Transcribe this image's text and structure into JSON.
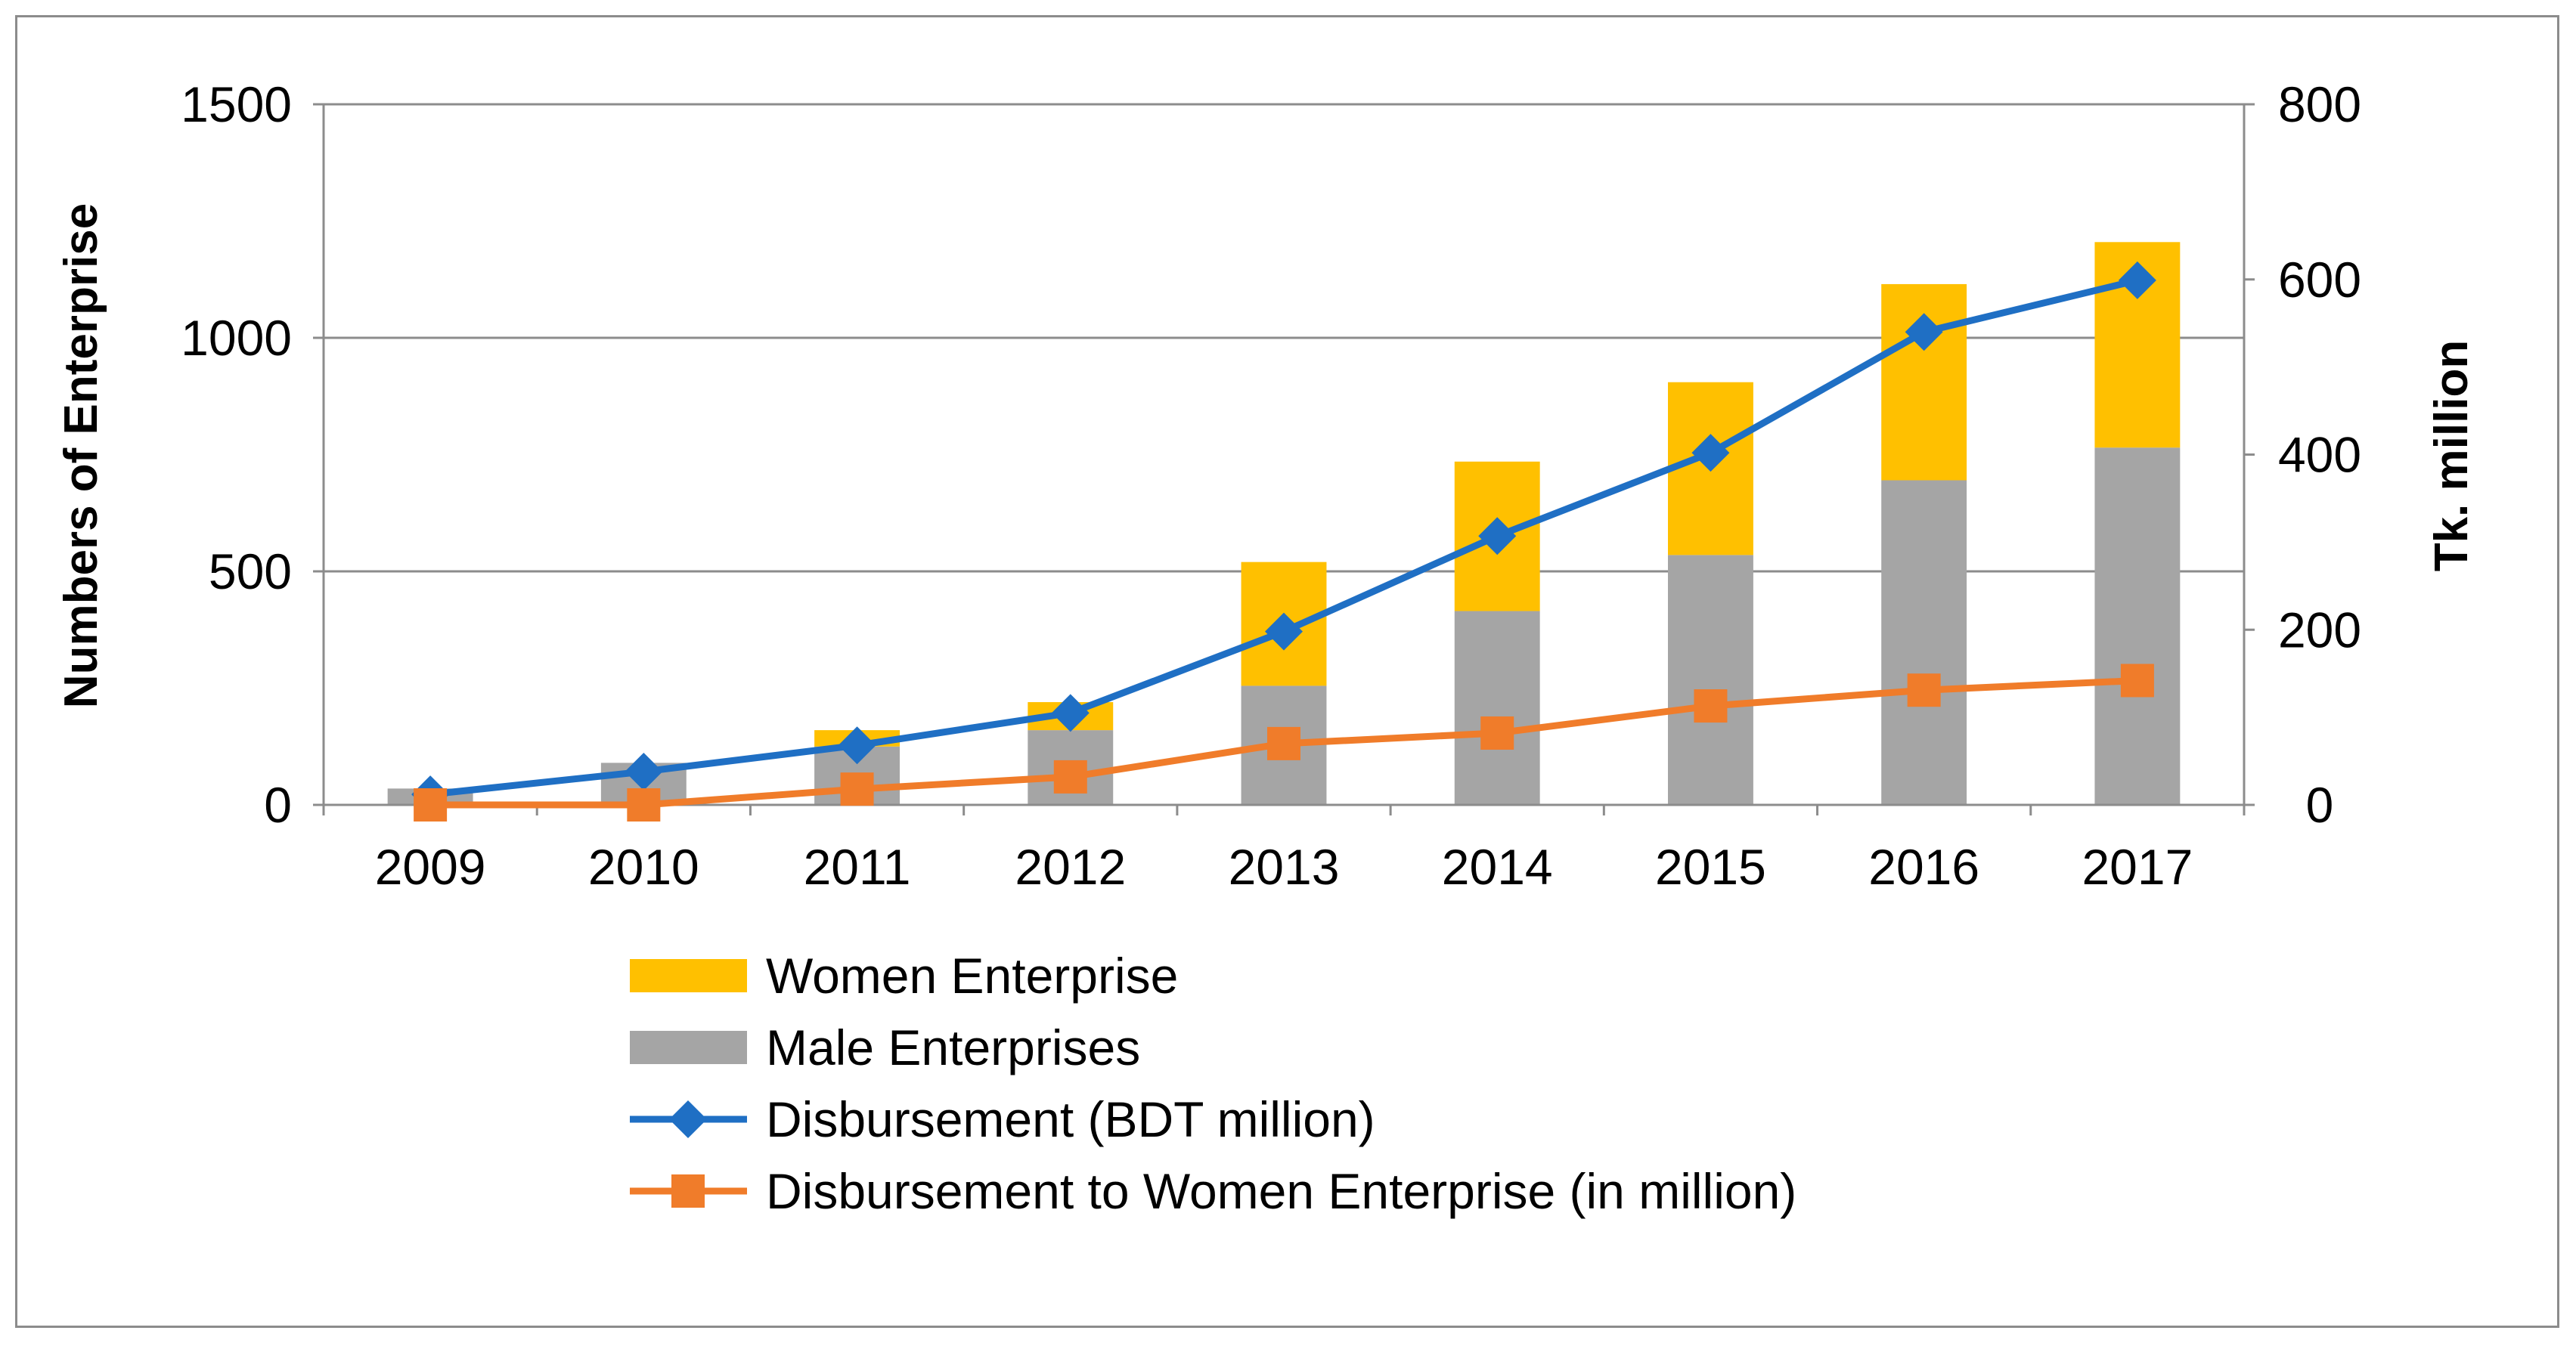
{
  "chart_data": {
    "type": "bar",
    "stacked": true,
    "categories": [
      "2009",
      "2010",
      "2011",
      "2012",
      "2013",
      "2014",
      "2015",
      "2016",
      "2017"
    ],
    "series": [
      {
        "name": "Male Enterprises",
        "kind": "bar",
        "axis": "left",
        "color": "#a5a5a5",
        "values": [
          35,
          90,
          125,
          160,
          255,
          415,
          535,
          695,
          765
        ]
      },
      {
        "name": "Women Enterprise",
        "kind": "bar",
        "axis": "left",
        "color": "#ffc000",
        "values": [
          0,
          0,
          35,
          60,
          265,
          320,
          370,
          420,
          440
        ]
      },
      {
        "name": "Disbursement (BDT million)",
        "kind": "line",
        "axis": "right",
        "marker": "diamond",
        "color": "#1f6fc4",
        "values": [
          12,
          38,
          68,
          105,
          198,
          307,
          402,
          540,
          599
        ]
      },
      {
        "name": "Disbursement to Women Enterprise (in million)",
        "kind": "line",
        "axis": "right",
        "marker": "square",
        "color": "#f07c2a",
        "values": [
          0,
          0,
          18,
          32,
          70,
          82,
          113,
          131,
          142
        ]
      }
    ],
    "legend_order": [
      "Women Enterprise",
      "Male Enterprises",
      "Disbursement (BDT million)",
      "Disbursement to Women Enterprise (in million)"
    ],
    "ylabel": "Numbers of Enterprise",
    "y2label": "Tk. million",
    "ylim": [
      0,
      1500
    ],
    "y2lim": [
      0,
      800
    ],
    "yticks": [
      "0",
      "500",
      "1000",
      "1500"
    ],
    "y2ticks": [
      "0",
      "200",
      "400",
      "600",
      "800"
    ],
    "legend_position": "bottom",
    "grid": true
  }
}
